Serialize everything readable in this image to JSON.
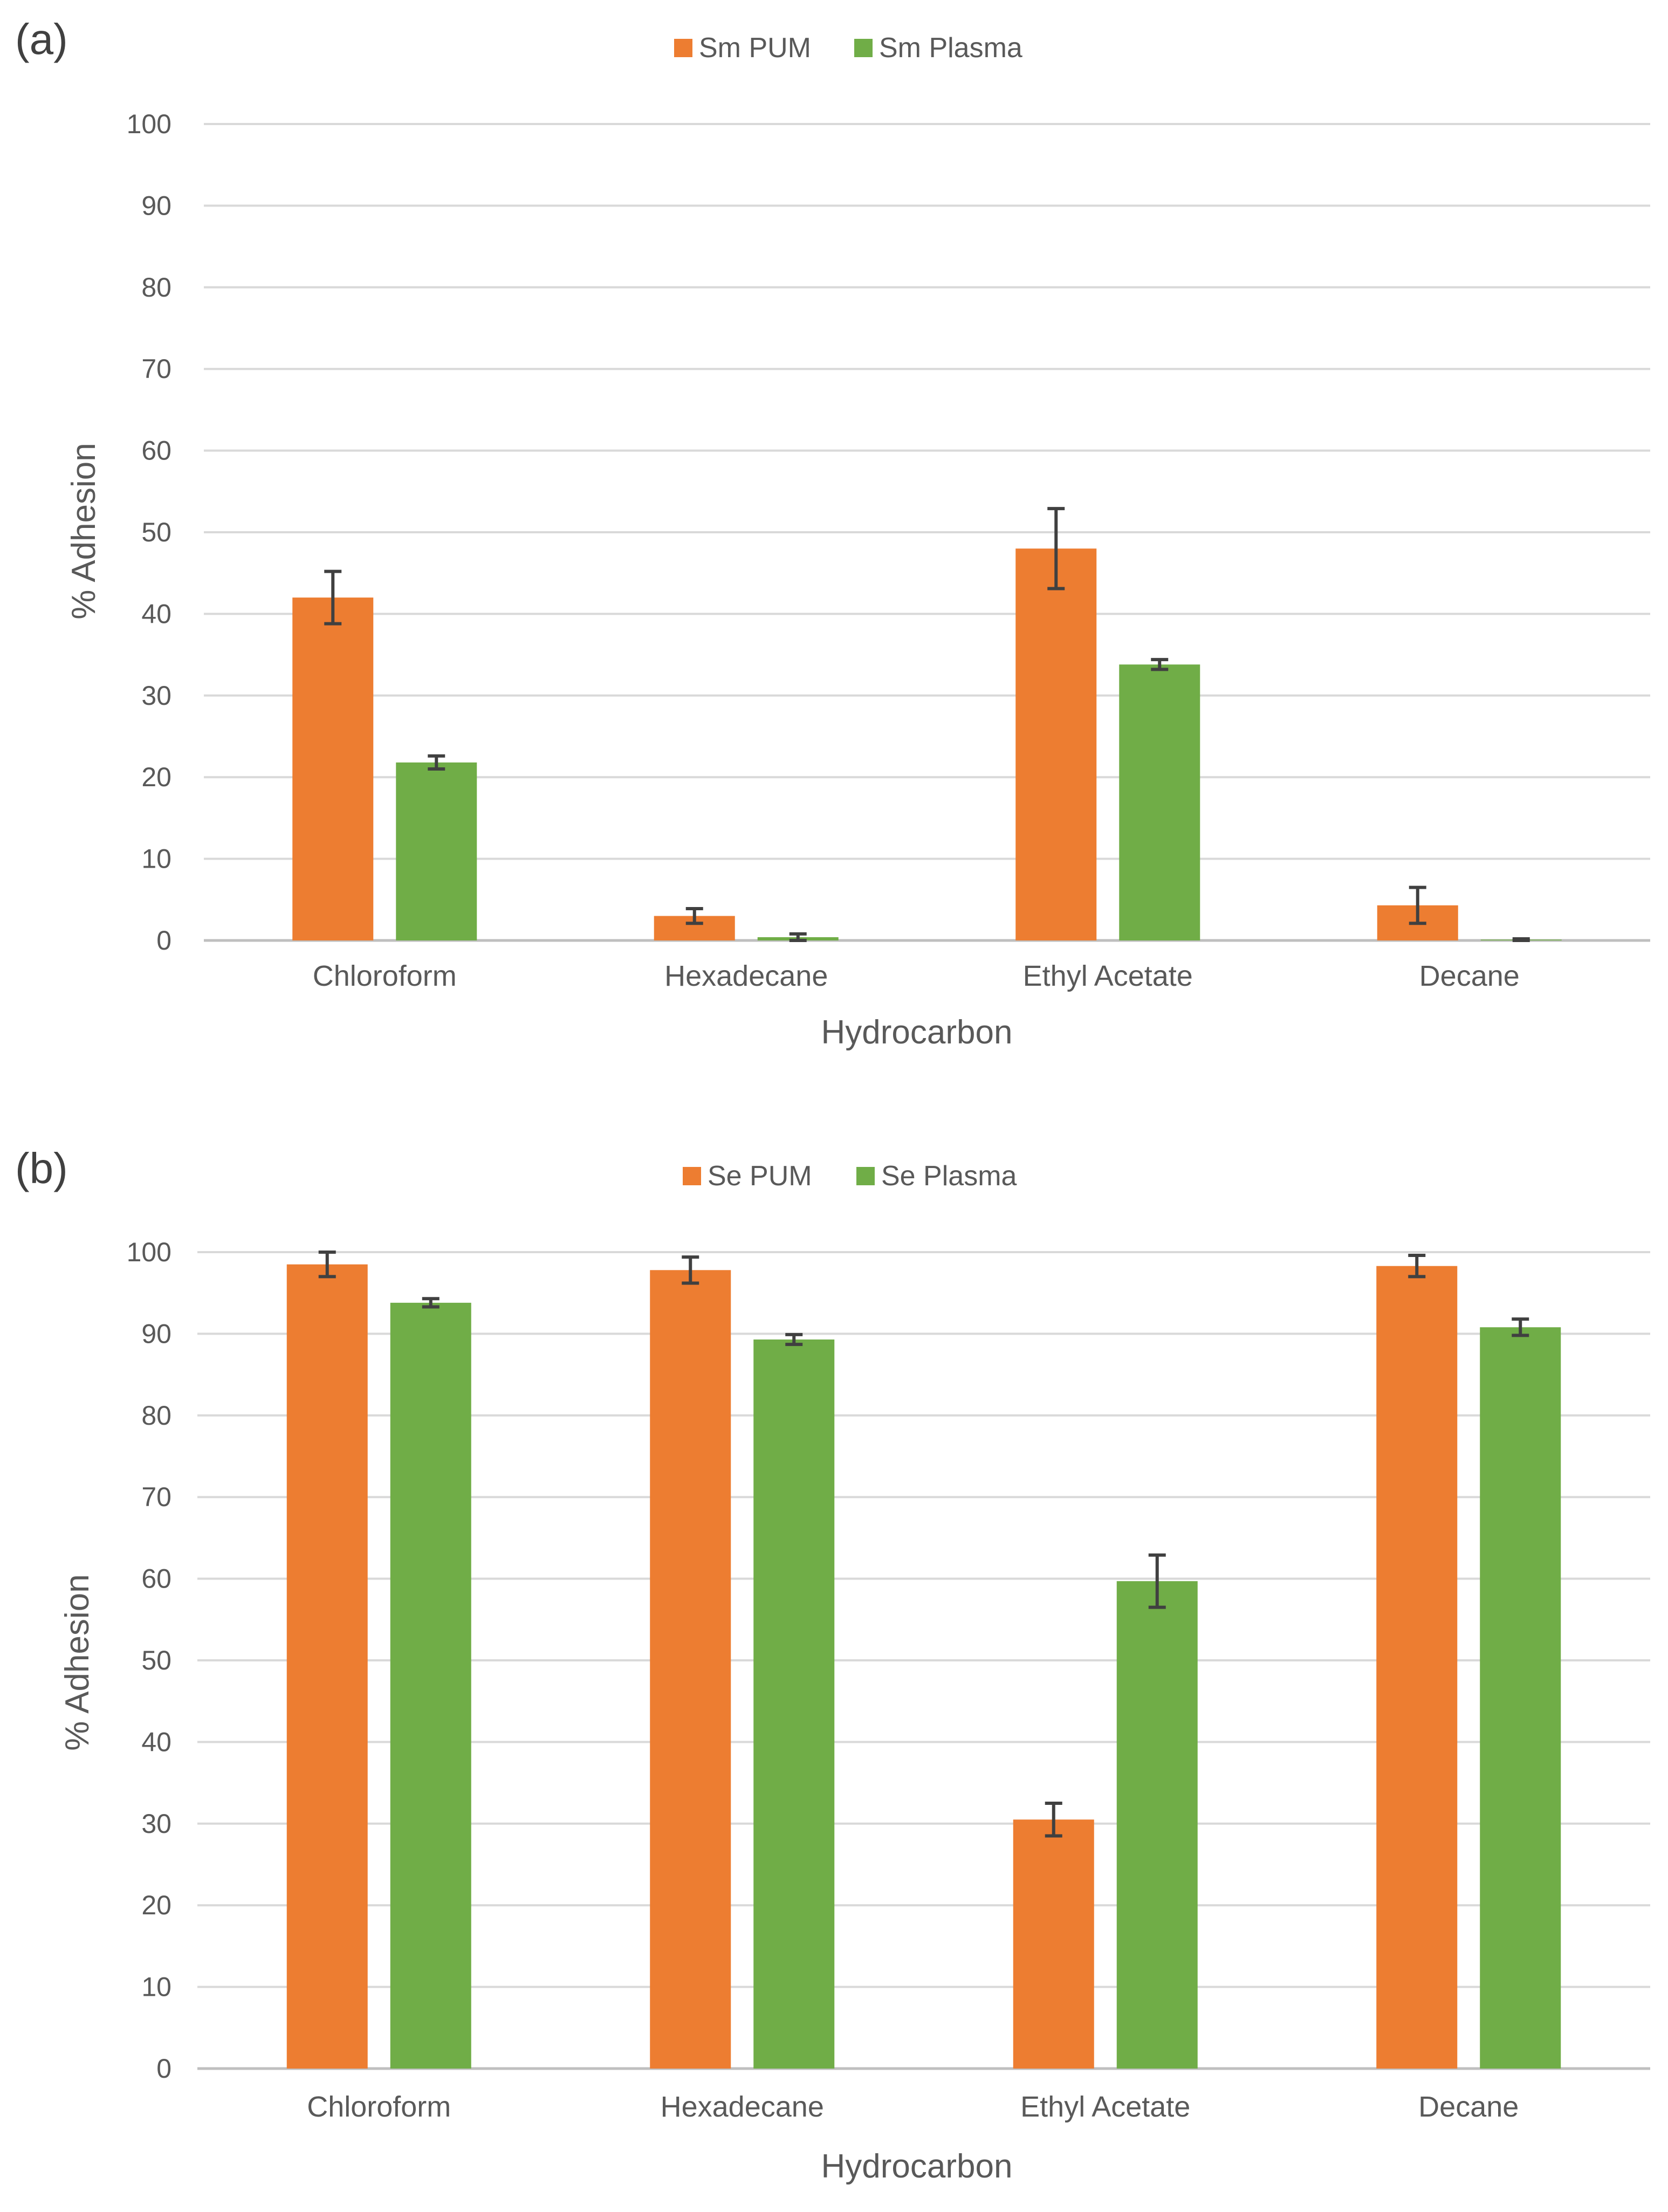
{
  "colors": {
    "pum": "#ED7D31",
    "plasma": "#70AD47",
    "grid": "#D9D9D9",
    "text": "#595959",
    "errorbar": "#404040"
  },
  "chart_data": [
    {
      "panel": "(a)",
      "type": "bar",
      "title": "",
      "xlabel": "Hydrocarbon",
      "ylabel": "% Adhesion",
      "ylim": [
        0,
        100
      ],
      "yticks": [
        "0",
        "10",
        "20",
        "30",
        "40",
        "50",
        "60",
        "70",
        "80",
        "90",
        "100"
      ],
      "grid": true,
      "legend": "top-center",
      "categories": [
        "Chloroform",
        "Hexadecane",
        "Ethyl Acetate",
        "Decane"
      ],
      "series": [
        {
          "name": "Sm PUM",
          "color": "#ED7D31",
          "values": [
            42,
            3,
            48,
            4.3
          ],
          "errors": [
            3.2,
            0.9,
            4.9,
            2.2
          ]
        },
        {
          "name": "Sm Plasma",
          "color": "#70AD47",
          "values": [
            21.8,
            0.4,
            33.8,
            0.1
          ],
          "errors": [
            0.8,
            0.4,
            0.6,
            0.1
          ]
        }
      ]
    },
    {
      "panel": "(b)",
      "type": "bar",
      "title": "",
      "xlabel": "Hydrocarbon",
      "ylabel": "% Adhesion",
      "ylim": [
        0,
        100
      ],
      "yticks": [
        "0",
        "10",
        "20",
        "30",
        "40",
        "50",
        "60",
        "70",
        "80",
        "90",
        "100"
      ],
      "grid": true,
      "legend": "top-center",
      "categories": [
        "Chloroform",
        "Hexadecane",
        "Ethyl Acetate",
        "Decane"
      ],
      "series": [
        {
          "name": "Se PUM",
          "color": "#ED7D31",
          "values": [
            98.5,
            97.8,
            30.5,
            98.3
          ],
          "errors": [
            1.5,
            1.6,
            2.0,
            1.3
          ]
        },
        {
          "name": "Se Plasma",
          "color": "#70AD47",
          "values": [
            93.8,
            89.3,
            59.7,
            90.8
          ],
          "errors": [
            0.5,
            0.6,
            3.2,
            1.0
          ]
        }
      ]
    }
  ]
}
